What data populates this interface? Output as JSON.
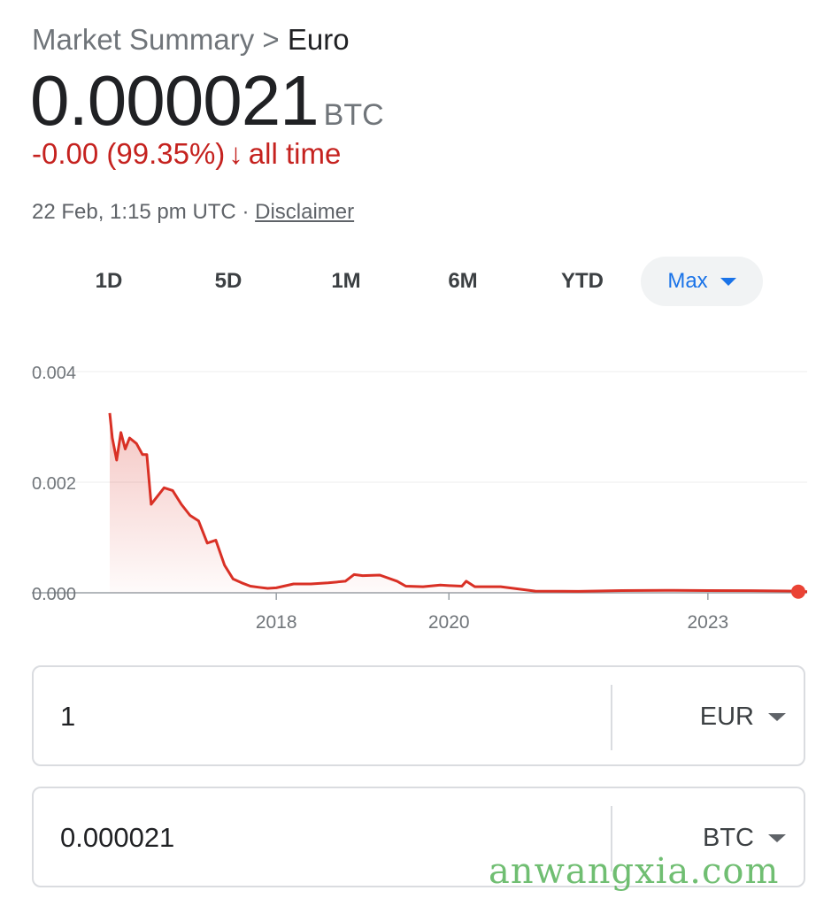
{
  "header": {
    "breadcrumb_parent": "Market Summary",
    "breadcrumb_sep": ">",
    "breadcrumb_current": "Euro",
    "price": "0.000021",
    "price_unit": "BTC",
    "change": "-0.00 (99.35%)",
    "change_arrow": "↓",
    "change_period": "all time",
    "timestamp": "22 Feb, 1:15 pm UTC",
    "meta_sep": "·",
    "disclaimer": "Disclaimer"
  },
  "ranges": {
    "items": [
      "1D",
      "5D",
      "1M",
      "6M",
      "YTD",
      "Max"
    ],
    "selected": "Max"
  },
  "chart_data": {
    "type": "area",
    "ylim": [
      0,
      0.004
    ],
    "y_ticks": [
      0,
      0.002,
      0.004
    ],
    "y_tick_labels": [
      "0.000",
      "0.002",
      "0.004"
    ],
    "x_ticks": [
      2018,
      2020,
      2023
    ],
    "x_tick_labels": [
      "2018",
      "2020",
      "2023"
    ],
    "xlim": [
      2016.05,
      2024.15
    ],
    "grid": true,
    "color": "#d93025",
    "series": [
      {
        "x": [
          2016.07,
          2016.1,
          2016.15,
          2016.2,
          2016.25,
          2016.3,
          2016.38,
          2016.45,
          2016.5,
          2016.55,
          2016.6,
          2016.7,
          2016.8,
          2016.9,
          2017.0,
          2017.1,
          2017.2,
          2017.3,
          2017.4,
          2017.5,
          2017.6,
          2017.7,
          2017.8,
          2017.9,
          2018.0,
          2018.2,
          2018.4,
          2018.6,
          2018.8,
          2018.9,
          2019.0,
          2019.2,
          2019.4,
          2019.5,
          2019.7,
          2019.9,
          2020.0,
          2020.15,
          2020.2,
          2020.3,
          2020.6,
          2020.8,
          2021.0,
          2021.5,
          2022.0,
          2022.5,
          2023.0,
          2023.5,
          2024.0,
          2024.15
        ],
        "y": [
          0.00325,
          0.0028,
          0.0024,
          0.0029,
          0.0026,
          0.0028,
          0.0027,
          0.0025,
          0.0025,
          0.0016,
          0.0017,
          0.0019,
          0.00185,
          0.0016,
          0.0014,
          0.0013,
          0.0009,
          0.00095,
          0.0005,
          0.00025,
          0.00018,
          0.00012,
          0.0001,
          8e-05,
          9e-05,
          0.00016,
          0.00016,
          0.00018,
          0.00021,
          0.00033,
          0.00031,
          0.00032,
          0.00021,
          0.00012,
          0.00011,
          0.00014,
          0.00013,
          0.00012,
          0.00021,
          0.00011,
          0.00011,
          7e-05,
          3e-05,
          2.5e-05,
          4e-05,
          4.5e-05,
          4e-05,
          3.8e-05,
          3e-05,
          2.1e-05
        ]
      }
    ]
  },
  "converter": {
    "from_value": "1",
    "from_unit": "EUR",
    "to_value": "0.000021",
    "to_unit": "BTC"
  },
  "watermark": "anwangxia.com"
}
